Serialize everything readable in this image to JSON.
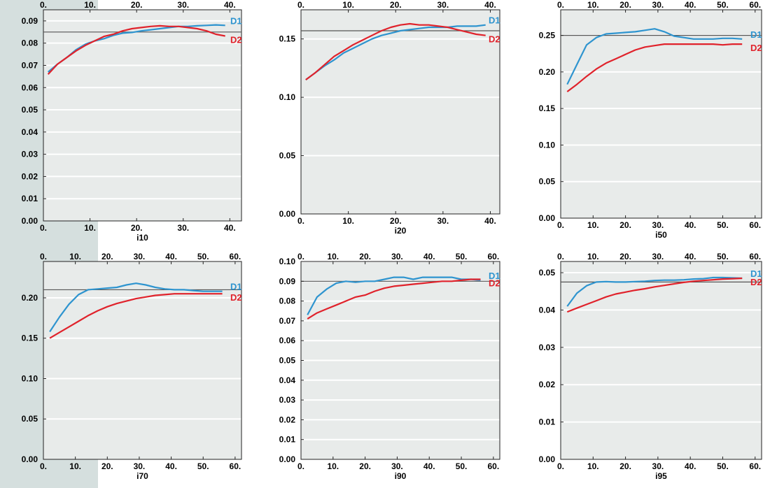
{
  "colors": {
    "d1": "#2e94cf",
    "d2": "#e0222b",
    "plot_bg": "#e8ebea",
    "grid": "#ffffff",
    "ref_line": "#555555",
    "side_strip": "#d5dfde"
  },
  "chart_data": [
    {
      "type": "line",
      "xlabel": "i10",
      "xlim": [
        0,
        42.5
      ],
      "ylim": [
        0,
        0.095
      ],
      "xticks": [
        0,
        10,
        20,
        30,
        40
      ],
      "xtick_labels": [
        "0.",
        "10.",
        "20.",
        "30.",
        "40."
      ],
      "yticks": [
        0,
        0.01,
        0.02,
        0.03,
        0.04,
        0.05,
        0.06,
        0.07,
        0.08,
        0.09
      ],
      "ytick_labels": [
        "0.00",
        "0.01",
        "0.02",
        "0.03",
        "0.04",
        "0.05",
        "0.06",
        "0.07",
        "0.08",
        "0.09"
      ],
      "reference_line": 0.085,
      "series": [
        {
          "name": "D1",
          "x": [
            1,
            3,
            5,
            7,
            9,
            11,
            13,
            15,
            17,
            19,
            21,
            23,
            25,
            27,
            29,
            31,
            33,
            35,
            37,
            39
          ],
          "y": [
            0.067,
            0.0705,
            0.0735,
            0.077,
            0.0795,
            0.081,
            0.082,
            0.0835,
            0.0845,
            0.0848,
            0.0855,
            0.086,
            0.0865,
            0.087,
            0.0875,
            0.0875,
            0.0878,
            0.088,
            0.0882,
            0.088
          ]
        },
        {
          "name": "D2",
          "x": [
            1,
            3,
            5,
            7,
            9,
            11,
            13,
            15,
            17,
            19,
            21,
            23,
            25,
            27,
            29,
            31,
            33,
            35,
            37,
            39
          ],
          "y": [
            0.066,
            0.0705,
            0.0735,
            0.0765,
            0.079,
            0.081,
            0.083,
            0.084,
            0.0855,
            0.0865,
            0.087,
            0.0875,
            0.0878,
            0.0875,
            0.0875,
            0.087,
            0.0865,
            0.0855,
            0.084,
            0.0832
          ]
        }
      ]
    },
    {
      "type": "line",
      "xlabel": "i20",
      "xlim": [
        0,
        42
      ],
      "ylim": [
        0,
        0.175
      ],
      "xticks": [
        0,
        10,
        20,
        30,
        40
      ],
      "xtick_labels": [
        "0.",
        "10.",
        "20.",
        "30.",
        "40."
      ],
      "yticks": [
        0,
        0.05,
        0.1,
        0.15
      ],
      "ytick_labels": [
        "0.00",
        "0.05",
        "0.10",
        "0.15"
      ],
      "reference_line": 0.157,
      "series": [
        {
          "name": "D1",
          "x": [
            1,
            3,
            5,
            7,
            9,
            11,
            13,
            15,
            17,
            19,
            21,
            23,
            25,
            27,
            29,
            31,
            33,
            35,
            37,
            39
          ],
          "y": [
            0.115,
            0.121,
            0.127,
            0.132,
            0.138,
            0.142,
            0.146,
            0.15,
            0.153,
            0.155,
            0.157,
            0.158,
            0.159,
            0.16,
            0.16,
            0.16,
            0.161,
            0.161,
            0.161,
            0.162
          ]
        },
        {
          "name": "D2",
          "x": [
            1,
            3,
            5,
            7,
            9,
            11,
            13,
            15,
            17,
            19,
            21,
            23,
            25,
            27,
            29,
            31,
            33,
            35,
            37,
            39
          ],
          "y": [
            0.115,
            0.121,
            0.128,
            0.135,
            0.14,
            0.145,
            0.149,
            0.153,
            0.157,
            0.16,
            0.162,
            0.163,
            0.162,
            0.162,
            0.161,
            0.16,
            0.158,
            0.156,
            0.154,
            0.153
          ]
        }
      ]
    },
    {
      "type": "line",
      "xlabel": "i50",
      "xlim": [
        0,
        62
      ],
      "ylim": [
        0,
        0.285
      ],
      "xticks": [
        0,
        10,
        20,
        30,
        40,
        50,
        60
      ],
      "xtick_labels": [
        "0.",
        "10.",
        "20.",
        "30.",
        "40.",
        "50.",
        "60."
      ],
      "yticks": [
        0,
        0.05,
        0.1,
        0.15,
        0.2,
        0.25
      ],
      "ytick_labels": [
        "0.00",
        "0.05",
        "0.10",
        "0.15",
        "0.20",
        "0.25"
      ],
      "reference_line": 0.25,
      "series": [
        {
          "name": "D1",
          "x": [
            2,
            5,
            8,
            11,
            14,
            17,
            20,
            23,
            26,
            29,
            32,
            35,
            38,
            41,
            44,
            47,
            50,
            53,
            56
          ],
          "y": [
            0.183,
            0.21,
            0.237,
            0.247,
            0.252,
            0.253,
            0.254,
            0.255,
            0.257,
            0.259,
            0.255,
            0.249,
            0.247,
            0.245,
            0.245,
            0.245,
            0.246,
            0.246,
            0.245
          ]
        },
        {
          "name": "D2",
          "x": [
            2,
            5,
            8,
            11,
            14,
            17,
            20,
            23,
            26,
            29,
            32,
            35,
            38,
            41,
            44,
            47,
            50,
            53,
            56
          ],
          "y": [
            0.173,
            0.183,
            0.194,
            0.204,
            0.212,
            0.218,
            0.224,
            0.23,
            0.234,
            0.236,
            0.238,
            0.238,
            0.238,
            0.238,
            0.238,
            0.238,
            0.237,
            0.238,
            0.238
          ]
        }
      ]
    },
    {
      "type": "line",
      "xlabel": "i70",
      "xlim": [
        0,
        62
      ],
      "ylim": [
        0,
        0.245
      ],
      "xticks": [
        0,
        10,
        20,
        30,
        40,
        50,
        60
      ],
      "xtick_labels": [
        "0.",
        "10.",
        "20.",
        "30.",
        "40.",
        "50.",
        "60."
      ],
      "yticks": [
        0,
        0.05,
        0.1,
        0.15,
        0.2
      ],
      "ytick_labels": [
        "0.00",
        "0.05",
        "0.10",
        "0.15",
        "0.20"
      ],
      "reference_line": 0.21,
      "series": [
        {
          "name": "D1",
          "x": [
            2,
            5,
            8,
            11,
            14,
            17,
            20,
            23,
            26,
            29,
            32,
            35,
            38,
            41,
            44,
            47,
            50,
            53,
            56
          ],
          "y": [
            0.158,
            0.176,
            0.192,
            0.204,
            0.21,
            0.211,
            0.212,
            0.213,
            0.216,
            0.218,
            0.216,
            0.213,
            0.211,
            0.21,
            0.21,
            0.209,
            0.208,
            0.208,
            0.208
          ]
        },
        {
          "name": "D2",
          "x": [
            2,
            5,
            8,
            11,
            14,
            17,
            20,
            23,
            26,
            29,
            32,
            35,
            38,
            41,
            44,
            47,
            50,
            53,
            56
          ],
          "y": [
            0.15,
            0.157,
            0.164,
            0.171,
            0.178,
            0.184,
            0.189,
            0.193,
            0.196,
            0.199,
            0.201,
            0.203,
            0.204,
            0.205,
            0.205,
            0.205,
            0.205,
            0.205,
            0.205
          ]
        }
      ]
    },
    {
      "type": "line",
      "xlabel": "i90",
      "xlim": [
        0,
        62
      ],
      "ylim": [
        0,
        0.1
      ],
      "xticks": [
        0,
        10,
        20,
        30,
        40,
        50,
        60
      ],
      "xtick_labels": [
        "0.",
        "10.",
        "20.",
        "30.",
        "40.",
        "50.",
        "60."
      ],
      "yticks": [
        0,
        0.01,
        0.02,
        0.03,
        0.04,
        0.05,
        0.06,
        0.07,
        0.08,
        0.09,
        0.1
      ],
      "ytick_labels": [
        "0.00",
        "0.01",
        "0.02",
        "0.03",
        "0.04",
        "0.05",
        "0.06",
        "0.07",
        "0.08",
        "0.09",
        "0.10"
      ],
      "reference_line": 0.09,
      "series": [
        {
          "name": "D1",
          "x": [
            2,
            5,
            8,
            11,
            14,
            17,
            20,
            23,
            26,
            29,
            32,
            35,
            38,
            41,
            44,
            47,
            50,
            53,
            56
          ],
          "y": [
            0.073,
            0.082,
            0.086,
            0.089,
            0.09,
            0.0895,
            0.09,
            0.09,
            0.091,
            0.092,
            0.092,
            0.091,
            0.092,
            0.092,
            0.092,
            0.092,
            0.091,
            0.091,
            0.0905
          ]
        },
        {
          "name": "D2",
          "x": [
            2,
            5,
            8,
            11,
            14,
            17,
            20,
            23,
            26,
            29,
            32,
            35,
            38,
            41,
            44,
            47,
            50,
            53,
            56
          ],
          "y": [
            0.071,
            0.074,
            0.076,
            0.078,
            0.08,
            0.082,
            0.083,
            0.085,
            0.0865,
            0.0875,
            0.088,
            0.0885,
            0.089,
            0.0895,
            0.09,
            0.09,
            0.0905,
            0.091,
            0.091
          ]
        }
      ]
    },
    {
      "type": "line",
      "xlabel": "i95",
      "xlim": [
        0,
        62
      ],
      "ylim": [
        0,
        0.053
      ],
      "xticks": [
        0,
        10,
        20,
        30,
        40,
        50,
        60
      ],
      "xtick_labels": [
        "0.",
        "10.",
        "20.",
        "30.",
        "40.",
        "50.",
        "60."
      ],
      "yticks": [
        0,
        0.01,
        0.02,
        0.03,
        0.04,
        0.05
      ],
      "ytick_labels": [
        "0.00",
        "0.01",
        "0.02",
        "0.03",
        "0.04",
        "0.05"
      ],
      "reference_line": 0.0475,
      "series": [
        {
          "name": "D1",
          "x": [
            2,
            5,
            8,
            11,
            14,
            17,
            20,
            23,
            26,
            29,
            32,
            35,
            38,
            41,
            44,
            47,
            50,
            53,
            56
          ],
          "y": [
            0.041,
            0.0445,
            0.0465,
            0.0475,
            0.0476,
            0.0475,
            0.0475,
            0.0476,
            0.0477,
            0.0479,
            0.048,
            0.048,
            0.0481,
            0.0483,
            0.0484,
            0.0487,
            0.0487,
            0.0486,
            0.0485
          ]
        },
        {
          "name": "D2",
          "x": [
            2,
            5,
            8,
            11,
            14,
            17,
            20,
            23,
            26,
            29,
            32,
            35,
            38,
            41,
            44,
            47,
            50,
            53,
            56
          ],
          "y": [
            0.0395,
            0.0405,
            0.0415,
            0.0425,
            0.0435,
            0.0443,
            0.0448,
            0.0453,
            0.0457,
            0.0462,
            0.0466,
            0.047,
            0.0474,
            0.0477,
            0.0479,
            0.0481,
            0.0483,
            0.0484,
            0.0485
          ]
        }
      ]
    }
  ]
}
